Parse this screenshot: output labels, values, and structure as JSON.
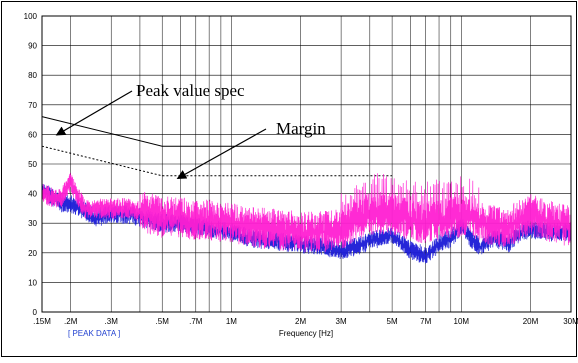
{
  "chart_data": {
    "type": "line",
    "xscale": "log",
    "xlim_hz": [
      150000,
      30000000
    ],
    "ylim": [
      0,
      100
    ],
    "xlabel": "Frequency [Hz]",
    "ylabel": "",
    "grid": true,
    "footer_label": "[ PEAK DATA ]",
    "y_ticks": [
      {
        "value": 0,
        "label": "0"
      },
      {
        "value": 10,
        "label": "10"
      },
      {
        "value": 20,
        "label": "20"
      },
      {
        "value": 30,
        "label": "30"
      },
      {
        "value": 40,
        "label": "40"
      },
      {
        "value": 50,
        "label": "50"
      },
      {
        "value": 60,
        "label": "60"
      },
      {
        "value": 70,
        "label": "70"
      },
      {
        "value": 80,
        "label": "80"
      },
      {
        "value": 90,
        "label": "90"
      },
      {
        "value": 100,
        "label": "100"
      }
    ],
    "x_ticks": [
      {
        "hz": 150000,
        "label": ".15M"
      },
      {
        "hz": 200000,
        "label": ".2M"
      },
      {
        "hz": 300000,
        "label": ".3M"
      },
      {
        "hz": 500000,
        "label": ".5M"
      },
      {
        "hz": 700000,
        "label": ".7M"
      },
      {
        "hz": 1000000,
        "label": "1M"
      },
      {
        "hz": 2000000,
        "label": "2M"
      },
      {
        "hz": 3000000,
        "label": "3M"
      },
      {
        "hz": 5000000,
        "label": "5M"
      },
      {
        "hz": 7000000,
        "label": "7M"
      },
      {
        "hz": 10000000,
        "label": "10M"
      },
      {
        "hz": 20000000,
        "label": "20M"
      },
      {
        "hz": 30000000,
        "label": "30M"
      }
    ],
    "limit_lines": [
      {
        "style": "solid",
        "color": "#000000",
        "points": [
          [
            150000,
            66
          ],
          [
            500000,
            56
          ],
          [
            5000000,
            56
          ]
        ]
      },
      {
        "style": "dashed",
        "color": "#000000",
        "points": [
          [
            150000,
            56
          ],
          [
            500000,
            46
          ],
          [
            5000000,
            46
          ]
        ]
      }
    ],
    "series": [
      {
        "color": "#1a1ad6",
        "points": [
          [
            150000,
            41
          ],
          [
            180000,
            37
          ],
          [
            210000,
            36
          ],
          [
            230000,
            34
          ],
          [
            260000,
            32
          ],
          [
            300000,
            33
          ],
          [
            350000,
            33
          ],
          [
            400000,
            32
          ],
          [
            450000,
            31
          ],
          [
            500000,
            30
          ],
          [
            600000,
            30
          ],
          [
            700000,
            29
          ],
          [
            800000,
            28
          ],
          [
            1000000,
            27
          ],
          [
            1200000,
            25
          ],
          [
            1500000,
            24
          ],
          [
            2000000,
            23
          ],
          [
            2500000,
            22
          ],
          [
            3000000,
            21
          ],
          [
            3500000,
            22
          ],
          [
            4000000,
            24
          ],
          [
            5000000,
            26
          ],
          [
            6000000,
            21
          ],
          [
            7000000,
            19
          ],
          [
            8000000,
            23
          ],
          [
            9000000,
            25
          ],
          [
            10000000,
            29
          ],
          [
            11000000,
            25
          ],
          [
            12000000,
            22
          ],
          [
            14000000,
            25
          ],
          [
            16000000,
            23
          ],
          [
            18000000,
            27
          ],
          [
            20000000,
            28
          ],
          [
            23000000,
            27
          ],
          [
            26000000,
            27
          ],
          [
            30000000,
            27
          ]
        ]
      },
      {
        "color": "#ff1fd2",
        "points": [
          [
            150000,
            40
          ],
          [
            180000,
            38
          ],
          [
            200000,
            44
          ],
          [
            210000,
            40
          ],
          [
            230000,
            35
          ],
          [
            260000,
            35
          ],
          [
            300000,
            35
          ],
          [
            350000,
            35
          ],
          [
            400000,
            34
          ],
          [
            450000,
            33
          ],
          [
            500000,
            32
          ],
          [
            600000,
            32
          ],
          [
            700000,
            31
          ],
          [
            800000,
            31
          ],
          [
            1000000,
            30
          ],
          [
            1200000,
            29
          ],
          [
            1500000,
            28
          ],
          [
            2000000,
            27
          ],
          [
            2500000,
            27
          ],
          [
            3000000,
            28
          ],
          [
            3500000,
            31
          ],
          [
            4000000,
            33
          ],
          [
            5000000,
            33
          ],
          [
            6000000,
            31
          ],
          [
            7000000,
            30
          ],
          [
            8000000,
            31
          ],
          [
            9000000,
            32
          ],
          [
            10000000,
            32
          ],
          [
            11000000,
            32
          ],
          [
            12000000,
            30
          ],
          [
            14000000,
            29
          ],
          [
            16000000,
            29
          ],
          [
            18000000,
            31
          ],
          [
            20000000,
            33
          ],
          [
            23000000,
            31
          ],
          [
            26000000,
            30
          ],
          [
            30000000,
            29
          ]
        ]
      }
    ],
    "annotations": [
      {
        "text": "Peak value spec",
        "target_hz": 200000,
        "target_value": 60.5
      },
      {
        "text": "Margin",
        "target_hz": 620000,
        "target_value": 46.5
      }
    ]
  }
}
